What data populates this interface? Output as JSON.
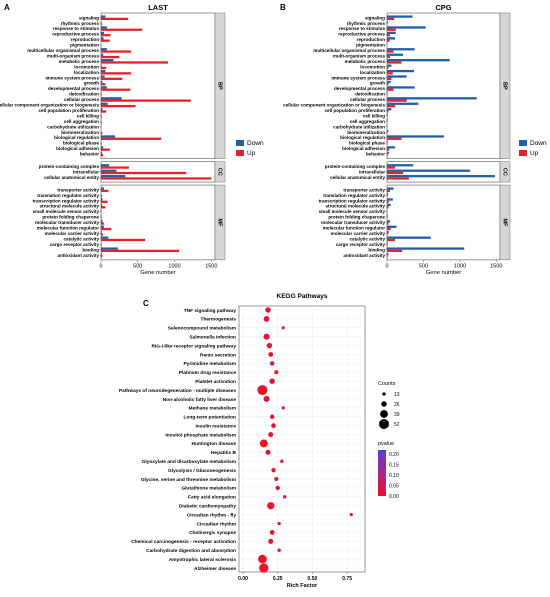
{
  "colors": {
    "down": "#1f5fa8",
    "up": "#e8202a",
    "strip": "#d6d6d6",
    "pvalue_high": "#5b3fe0",
    "pvalue_low": "#f0102a"
  },
  "chart_data": [
    {
      "type": "bar",
      "panel": "A",
      "title": "LAST",
      "xlabel": "Gene number",
      "xlim": [
        0,
        1550
      ],
      "xticks": [
        "0",
        "500",
        "1000",
        "1500"
      ],
      "legend": {
        "position": "right",
        "entries": [
          "Down",
          "Up"
        ]
      },
      "groups": [
        {
          "name": "BP",
          "categories": [
            "signaling",
            "rhythmic process",
            "response to stimulus",
            "reproductive process",
            "reproduction",
            "pigmentation",
            "multicellular organismal process",
            "multi-organism process",
            "metabolic process",
            "locomotion",
            "localization",
            "immune system process",
            "growth",
            "developmental process",
            "detoxification",
            "cellular process",
            "cellular component organization or biogenesis",
            "cell population proliferation",
            "cell killing",
            "cell aggregation",
            "carbohydrate utilization",
            "biomineralization",
            "biological regulation",
            "biological phase",
            "biological adhesion",
            "behavior"
          ]
        },
        {
          "name": "CC",
          "categories": [
            "protein-containing complex",
            "intracellular",
            "cellular anatomical entity"
          ]
        },
        {
          "name": "MF",
          "categories": [
            "transporter activity",
            "translation regulator activity",
            "transcription regulator activity",
            "structural molecule activity",
            "small molecule sensor activity",
            "protein folding chaperone",
            "molecular transducer activity",
            "molecular function regulator",
            "molecular carrier activity",
            "catalytic activity",
            "cargo receptor activity",
            "binding",
            "antioxidant activity"
          ]
        }
      ],
      "series": [
        {
          "name": "Down",
          "values": [
            60,
            5,
            80,
            40,
            35,
            0,
            80,
            30,
            170,
            10,
            60,
            50,
            20,
            80,
            5,
            280,
            90,
            20,
            5,
            5,
            2,
            5,
            190,
            5,
            30,
            15,
            110,
            210,
            330,
            40,
            5,
            20,
            15,
            5,
            5,
            20,
            40,
            10,
            100,
            5,
            230,
            10
          ]
        },
        {
          "name": "Up",
          "values": [
            370,
            15,
            560,
            130,
            120,
            5,
            410,
            250,
            910,
            70,
            410,
            290,
            60,
            400,
            10,
            1220,
            470,
            70,
            10,
            10,
            5,
            20,
            820,
            10,
            120,
            30,
            380,
            1160,
            1500,
            100,
            15,
            90,
            60,
            5,
            10,
            40,
            140,
            30,
            600,
            10,
            1060,
            20
          ]
        }
      ]
    },
    {
      "type": "bar",
      "panel": "B",
      "title": "CPG",
      "xlabel": "Gene number",
      "xlim": [
        0,
        1550
      ],
      "xticks": [
        "0",
        "500",
        "1000",
        "1500"
      ],
      "legend": {
        "position": "right",
        "entries": [
          "Down",
          "Up"
        ]
      },
      "groups": [
        {
          "name": "BP",
          "categories": [
            "signaling",
            "rhythmic process",
            "response to stimulus",
            "reproductive process",
            "reproduction",
            "pigmentation",
            "multicellular organismal process",
            "multi-organism process",
            "metabolic process",
            "locomotion",
            "localization",
            "immune system process",
            "growth",
            "developmental process",
            "detoxification",
            "cellular process",
            "cellular component organization or biogenesis",
            "cell population proliferation",
            "cell killing",
            "cell aggregation",
            "carbohydrate utilization",
            "biomineralization",
            "biological regulation",
            "biological phase",
            "biological adhesion",
            "behavior"
          ]
        },
        {
          "name": "CC",
          "categories": [
            "protein-containing complex",
            "intracellular",
            "cellular anatomical entity"
          ]
        },
        {
          "name": "MF",
          "categories": [
            "transporter activity",
            "translation regulator activity",
            "transcription regulator activity",
            "structural molecule activity",
            "small molecule sensor activity",
            "protein folding chaperone",
            "molecular transducer activity",
            "molecular function regulator",
            "molecular carrier activity",
            "catalytic activity",
            "cargo receptor activity",
            "binding",
            "antioxidant activity"
          ]
        }
      ],
      "series": [
        {
          "name": "Down",
          "values": [
            350,
            15,
            530,
            120,
            110,
            5,
            380,
            220,
            860,
            60,
            370,
            270,
            50,
            380,
            10,
            1230,
            430,
            60,
            10,
            10,
            5,
            20,
            780,
            10,
            110,
            25,
            360,
            1140,
            1480,
            90,
            15,
            80,
            50,
            5,
            10,
            40,
            130,
            25,
            600,
            10,
            1060,
            20
          ]
        },
        {
          "name": "Up",
          "values": [
            100,
            5,
            120,
            40,
            35,
            0,
            90,
            40,
            200,
            20,
            80,
            60,
            20,
            90,
            5,
            270,
            110,
            20,
            5,
            5,
            2,
            5,
            200,
            5,
            30,
            10,
            110,
            220,
            300,
            40,
            5,
            25,
            20,
            5,
            5,
            20,
            50,
            10,
            110,
            5,
            210,
            10
          ]
        }
      ]
    },
    {
      "type": "scatter",
      "panel": "C",
      "title": "KEGG Pathways",
      "xlabel": "Rich Factor",
      "xlim": [
        0,
        0.85
      ],
      "xticks": [
        "0.00",
        "0.25",
        "0.50",
        "0.75"
      ],
      "categories": [
        "TNF signaling pathway",
        "Thermogenesis",
        "Selenocompound metabolism",
        "Salmonella infection",
        "RIG-I-like receptor signaling pathway",
        "Renin secretion",
        "Pyrimidine metabolism",
        "Platinum drug resistance",
        "Platelet activation",
        "Pathways of neurodegeneration - multiple diseases",
        "Non-alcoholic fatty liver disease",
        "Methane metabolism",
        "Long-term potentiation",
        "Insulin resistance",
        "Inositol phosphate metabolism",
        "Huntington disease",
        "Hepatitis B",
        "Glyoxylate and dicarboxylate metabolism",
        "Glycolysis / Gluconeogenesis",
        "Glycine, serine and threonine metabolism",
        "Glutathione metabolism",
        "Fatty acid elongation",
        "Diabetic cardiomyopathy",
        "Circadian rhythm - fly",
        "Circadian rhythm",
        "Cholinergic synapse",
        "Chemical carcinogenesis - receptor activation",
        "Carbohydrate digestion and absorption",
        "Amyotrophic lateral sclerosis",
        "Alzheimer disease"
      ],
      "x": [
        0.18,
        0.17,
        0.29,
        0.17,
        0.19,
        0.2,
        0.21,
        0.24,
        0.21,
        0.14,
        0.17,
        0.29,
        0.21,
        0.22,
        0.2,
        0.15,
        0.18,
        0.28,
        0.22,
        0.24,
        0.25,
        0.3,
        0.2,
        0.78,
        0.26,
        0.21,
        0.2,
        0.26,
        0.14,
        0.15
      ],
      "counts": [
        26,
        28,
        13,
        30,
        26,
        22,
        20,
        18,
        26,
        52,
        30,
        13,
        20,
        22,
        24,
        40,
        24,
        14,
        20,
        18,
        20,
        14,
        36,
        13,
        14,
        22,
        24,
        14,
        44,
        48
      ],
      "pvalue": [
        0.01,
        0.01,
        0.02,
        0.01,
        0.01,
        0.01,
        0.01,
        0.02,
        0.01,
        0.0,
        0.01,
        0.02,
        0.01,
        0.01,
        0.01,
        0.0,
        0.01,
        0.02,
        0.01,
        0.01,
        0.01,
        0.02,
        0.0,
        0.02,
        0.02,
        0.01,
        0.01,
        0.02,
        0.0,
        0.0
      ],
      "size_legend": {
        "title": "Counts",
        "values": [
          "13",
          "26",
          "39",
          "52"
        ]
      },
      "color_legend": {
        "title": "pvalue",
        "ticks": [
          "0.20",
          "0.15",
          "0.10",
          "0.05",
          "0.00"
        ],
        "range": [
          0,
          0.22
        ]
      }
    }
  ]
}
